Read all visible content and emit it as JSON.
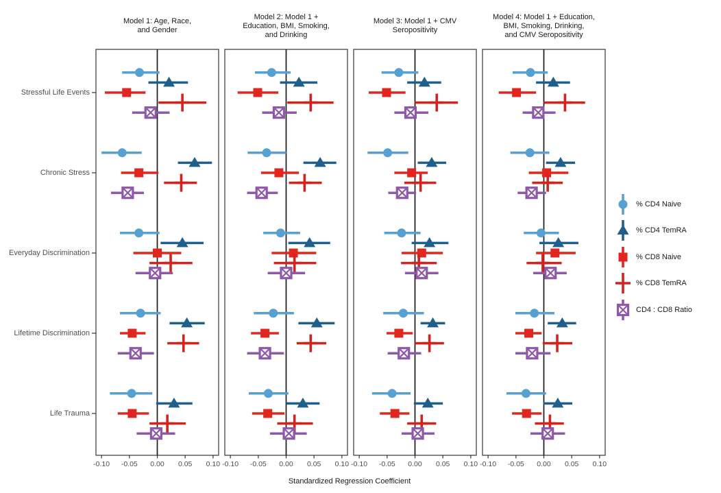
{
  "chart_data": {
    "type": "forest-dot-whisker",
    "xlabel": "Standardized Regression Coefficient",
    "x_tick_labels": [
      "-0.10",
      "-0.05",
      "0.00",
      "0.05",
      "0.10"
    ],
    "x_tick_values": [
      -0.1,
      -0.05,
      0.0,
      0.05,
      0.1
    ],
    "xlim": [
      -0.11,
      0.11
    ],
    "grid": false,
    "legend_position": "right",
    "zero_line": 0.0,
    "categories": [
      "Stressful Life Events",
      "Chronic Stress",
      "Everyday Discrimination",
      "Lifetime Discrimination",
      "Life Trauma"
    ],
    "series": [
      {
        "name": "% CD4 Naive",
        "marker": "circle",
        "color": "#56A0D2"
      },
      {
        "name": "% CD4 TemRA",
        "marker": "triangle",
        "color": "#1F5F8B"
      },
      {
        "name": "% CD8 Naive",
        "marker": "square",
        "color": "#E0261F"
      },
      {
        "name": "% CD8 TemRA",
        "marker": "plus",
        "color": "#D2241F"
      },
      {
        "name": "CD4 : CD8 Ratio",
        "marker": "square-x",
        "color": "#8E59A8"
      }
    ],
    "panels": [
      {
        "title_lines": [
          "Model 1: Age, Race,",
          "and Gender"
        ],
        "estimates": [
          [
            [
              -0.032,
              -0.063,
              0.004
            ],
            [
              0.021,
              -0.016,
              0.055
            ],
            [
              -0.055,
              -0.094,
              -0.021
            ],
            [
              0.045,
              0.002,
              0.088
            ],
            [
              -0.012,
              -0.045,
              0.022
            ]
          ],
          [
            [
              -0.063,
              -0.1,
              -0.028
            ],
            [
              0.067,
              0.037,
              0.098
            ],
            [
              -0.033,
              -0.065,
              0.002
            ],
            [
              0.043,
              0.012,
              0.071
            ],
            [
              -0.053,
              -0.083,
              -0.024
            ]
          ],
          [
            [
              -0.033,
              -0.067,
              0.004
            ],
            [
              0.045,
              0.006,
              0.083
            ],
            [
              0.0,
              -0.043,
              0.043
            ],
            [
              0.024,
              -0.014,
              0.063
            ],
            [
              -0.004,
              -0.039,
              0.028
            ]
          ],
          [
            [
              -0.03,
              -0.067,
              0.006
            ],
            [
              0.053,
              0.022,
              0.085
            ],
            [
              -0.045,
              -0.067,
              -0.021
            ],
            [
              0.047,
              0.018,
              0.075
            ],
            [
              -0.039,
              -0.071,
              -0.006
            ]
          ],
          [
            [
              -0.046,
              -0.085,
              -0.009
            ],
            [
              0.03,
              -0.002,
              0.063
            ],
            [
              -0.045,
              -0.071,
              -0.015
            ],
            [
              0.018,
              -0.014,
              0.051
            ],
            [
              -0.002,
              -0.037,
              0.032
            ]
          ]
        ]
      },
      {
        "title_lines": [
          "Model 2: Model 1 +",
          "Education, BMI, Smoking,",
          "and Drinking"
        ],
        "estimates": [
          [
            [
              -0.026,
              -0.056,
              0.008
            ],
            [
              0.023,
              -0.011,
              0.056
            ],
            [
              -0.051,
              -0.087,
              -0.014
            ],
            [
              0.044,
              0.002,
              0.085
            ],
            [
              -0.013,
              -0.043,
              0.019
            ]
          ],
          [
            [
              -0.035,
              -0.069,
              0.0
            ],
            [
              0.061,
              0.031,
              0.09
            ],
            [
              -0.013,
              -0.045,
              0.023
            ],
            [
              0.033,
              0.005,
              0.064
            ],
            [
              -0.044,
              -0.07,
              -0.015
            ]
          ],
          [
            [
              -0.01,
              -0.041,
              0.025
            ],
            [
              0.042,
              0.004,
              0.079
            ],
            [
              0.013,
              -0.026,
              0.054
            ],
            [
              0.015,
              -0.022,
              0.054
            ],
            [
              0.0,
              -0.033,
              0.034
            ]
          ],
          [
            [
              -0.023,
              -0.058,
              0.014
            ],
            [
              0.055,
              0.022,
              0.087
            ],
            [
              -0.038,
              -0.063,
              -0.013
            ],
            [
              0.044,
              0.019,
              0.072
            ],
            [
              -0.038,
              -0.07,
              -0.004
            ]
          ],
          [
            [
              -0.032,
              -0.067,
              0.004
            ],
            [
              0.03,
              0.0,
              0.06
            ],
            [
              -0.033,
              -0.061,
              -0.003
            ],
            [
              0.015,
              -0.016,
              0.048
            ],
            [
              0.005,
              -0.029,
              0.037
            ]
          ]
        ]
      },
      {
        "title_lines": [
          "Model 3: Model 1 + CMV",
          "Seropositivity"
        ],
        "estimates": [
          [
            [
              -0.029,
              -0.06,
              0.006
            ],
            [
              0.017,
              -0.014,
              0.047
            ],
            [
              -0.051,
              -0.083,
              -0.017
            ],
            [
              0.039,
              0.0,
              0.077
            ],
            [
              -0.008,
              -0.037,
              0.024
            ]
          ],
          [
            [
              -0.049,
              -0.085,
              -0.012
            ],
            [
              0.03,
              0.005,
              0.056
            ],
            [
              -0.006,
              -0.037,
              0.023
            ],
            [
              0.01,
              -0.019,
              0.038
            ],
            [
              -0.023,
              -0.048,
              0.002
            ]
          ],
          [
            [
              -0.024,
              -0.055,
              0.01
            ],
            [
              0.026,
              -0.006,
              0.06
            ],
            [
              0.012,
              -0.024,
              0.05
            ],
            [
              0.007,
              -0.025,
              0.039
            ],
            [
              0.012,
              -0.018,
              0.042
            ]
          ],
          [
            [
              -0.021,
              -0.057,
              0.016
            ],
            [
              0.032,
              0.01,
              0.054
            ],
            [
              -0.029,
              -0.051,
              -0.004
            ],
            [
              0.026,
              0.0,
              0.052
            ],
            [
              -0.02,
              -0.049,
              0.011
            ]
          ],
          [
            [
              -0.041,
              -0.077,
              -0.008
            ],
            [
              0.023,
              -0.002,
              0.05
            ],
            [
              -0.036,
              -0.063,
              -0.01
            ],
            [
              0.012,
              -0.014,
              0.038
            ],
            [
              0.005,
              -0.024,
              0.035
            ]
          ]
        ]
      },
      {
        "title_lines": [
          "Model 4: Model 1 + Education,",
          "BMI, Smoking, Drinking,",
          "and CMV Seropositivity"
        ],
        "estimates": [
          [
            [
              -0.024,
              -0.056,
              0.007
            ],
            [
              0.017,
              -0.014,
              0.047
            ],
            [
              -0.049,
              -0.081,
              -0.014
            ],
            [
              0.038,
              0.0,
              0.074
            ],
            [
              -0.01,
              -0.038,
              0.021
            ]
          ],
          [
            [
              -0.025,
              -0.06,
              0.01
            ],
            [
              0.03,
              0.004,
              0.056
            ],
            [
              0.005,
              -0.027,
              0.044
            ],
            [
              0.007,
              -0.021,
              0.034
            ],
            [
              -0.022,
              -0.047,
              0.004
            ]
          ],
          [
            [
              -0.005,
              -0.036,
              0.027
            ],
            [
              0.026,
              -0.008,
              0.062
            ],
            [
              0.02,
              -0.014,
              0.057
            ],
            [
              -0.002,
              -0.031,
              0.032
            ],
            [
              0.012,
              -0.019,
              0.041
            ]
          ],
          [
            [
              -0.017,
              -0.051,
              0.019
            ],
            [
              0.033,
              0.007,
              0.058
            ],
            [
              -0.027,
              -0.051,
              -0.004
            ],
            [
              0.024,
              -0.002,
              0.051
            ],
            [
              -0.021,
              -0.051,
              0.012
            ]
          ],
          [
            [
              -0.032,
              -0.067,
              0.004
            ],
            [
              0.025,
              -0.001,
              0.051
            ],
            [
              -0.031,
              -0.057,
              -0.004
            ],
            [
              0.011,
              -0.016,
              0.036
            ],
            [
              0.007,
              -0.024,
              0.038
            ]
          ]
        ]
      }
    ],
    "colors": {
      "panel_border": "#333333",
      "zero_line": "#1a1a1a",
      "tick": "#333333",
      "tick_text": "#4d4d4d",
      "title_text": "#1a1a1a"
    }
  }
}
